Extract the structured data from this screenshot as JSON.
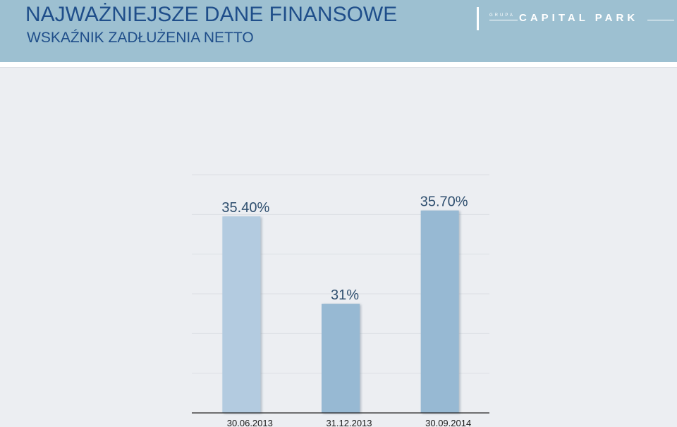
{
  "header": {
    "title": "NAJWAŻNIEJSZE DANE FINANSOWE",
    "subtitle": "WSKAŹNIK ZADŁUŻENIA NETTO"
  },
  "logo": {
    "grupa": "GRUPA",
    "name": "CAPITAL PARK"
  },
  "colors": {
    "header_bg": "#9dc0d1",
    "title_text": "#1f4e8a",
    "bar_first": "#b3cbe0",
    "bar_other": "#97b9d3",
    "label_text": "#2f4f6f"
  },
  "chart_data": {
    "type": "bar",
    "categories": [
      "30.06.2013",
      "31.12.2013",
      "30.09.2014"
    ],
    "values": [
      35.4,
      31,
      35.7
    ],
    "data_labels": [
      "35.40%",
      "31%",
      "35.70%"
    ],
    "title": "",
    "xlabel": "",
    "ylabel": "",
    "ylim": [
      25.5,
      37.5
    ],
    "grid": true,
    "legend": "none"
  }
}
